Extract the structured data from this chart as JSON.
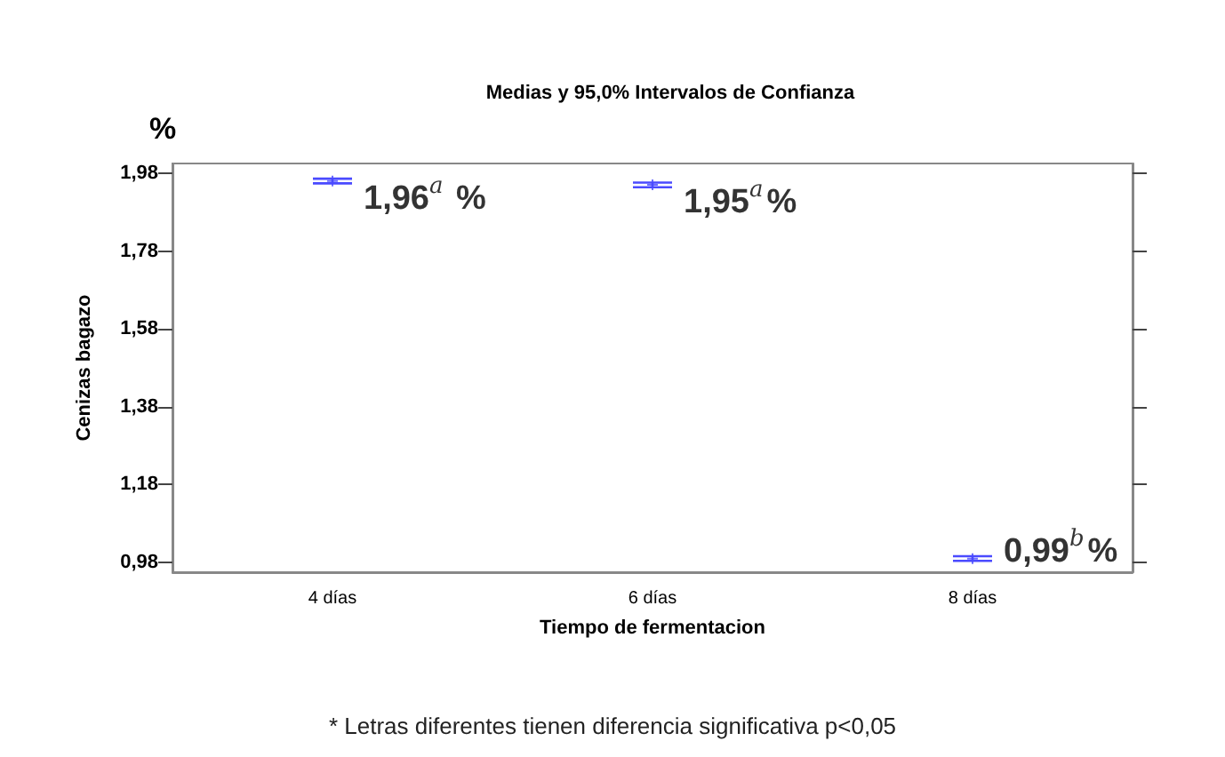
{
  "chart_data": {
    "type": "scatter",
    "title": "Medias y 95,0% Intervalos de Confianza",
    "xlabel": "Tiempo de fermentacion",
    "ylabel": "Cenizas bagazo",
    "annotations": [
      "%",
      "* Letras diferentes tienen diferencia significativa p<0,05"
    ],
    "categories": [
      "4 días",
      "6 días",
      "8 días"
    ],
    "series": [
      {
        "color": "#4a4aff",
        "values": [
          1.96,
          1.95,
          0.99
        ],
        "errors": [
          0.006,
          0.006,
          0.006
        ],
        "value_labels": [
          "1,96$^{a}$ %",
          "1,95$^{a}$%",
          "0,99$^{b}$%"
        ]
      }
    ],
    "marker": "cross",
    "ylim": [
      0.955,
      2.005
    ],
    "yticks": [
      {
        "value": 0.98,
        "label": "0,98"
      },
      {
        "value": 1.18,
        "label": "1,18"
      },
      {
        "value": 1.38,
        "label": "1,38"
      },
      {
        "value": 1.58,
        "label": "1,58"
      },
      {
        "value": 1.78,
        "label": "1,78"
      },
      {
        "value": 1.98,
        "label": "1,98"
      }
    ],
    "grid": false,
    "legend": false
  }
}
